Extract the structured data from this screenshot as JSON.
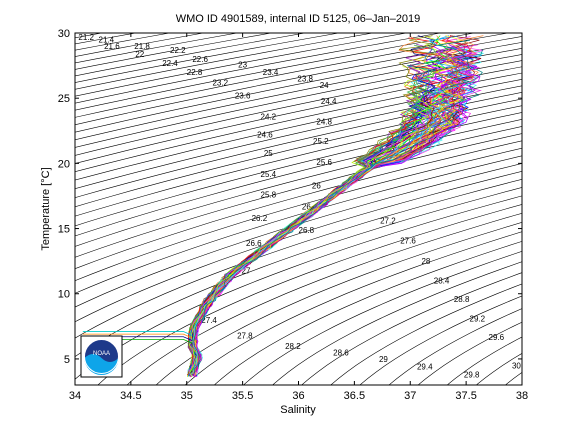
{
  "chart_data": {
    "type": "scatter",
    "title": "WMO ID 4901589, internal ID 5125, 06–Jan–2019",
    "xlabel": "Salinity",
    "ylabel": "Temperature [°C]",
    "xlim": [
      34,
      38
    ],
    "ylim": [
      3,
      30
    ],
    "xticks": [
      "34",
      "34.5",
      "35",
      "35.5",
      "36",
      "36.5",
      "37",
      "37.5",
      "38"
    ],
    "yticks": [
      "5",
      "10",
      "15",
      "20",
      "25",
      "30"
    ],
    "grid": false,
    "logo_text": "NOAA",
    "density_contours": {
      "labels": [
        "21.2",
        "21.4",
        "21.6",
        "21.8",
        "22",
        "22.2",
        "22.4",
        "22.6",
        "22.8",
        "23",
        "23.2",
        "23.4",
        "23.6",
        "23.8",
        "24",
        "24.2",
        "24.4",
        "24.6",
        "24.8",
        "25",
        "25.2",
        "25.4",
        "25.6",
        "25.8",
        "26",
        "26.2",
        "26.4",
        "26.6",
        "26.8",
        "27",
        "27.2",
        "27.4",
        "27.6",
        "27.8",
        "28",
        "28.2",
        "28.4",
        "28.6",
        "28.8",
        "29",
        "29.2",
        "29.4",
        "29.6",
        "29.8",
        "30"
      ],
      "label_positions": [
        {
          "t": "21.2",
          "s": 34.1,
          "T": 29.7
        },
        {
          "t": "21.4",
          "s": 34.28,
          "T": 29.5
        },
        {
          "t": "21.6",
          "s": 34.33,
          "T": 29.0
        },
        {
          "t": "21.8",
          "s": 34.6,
          "T": 29.0
        },
        {
          "t": "22",
          "s": 34.58,
          "T": 28.4
        },
        {
          "t": "22.2",
          "s": 34.92,
          "T": 28.7
        },
        {
          "t": "22.4",
          "s": 34.85,
          "T": 27.7
        },
        {
          "t": "22.6",
          "s": 35.12,
          "T": 28.0
        },
        {
          "t": "22.8",
          "s": 35.07,
          "T": 27.0
        },
        {
          "t": "23",
          "s": 35.5,
          "T": 27.6
        },
        {
          "t": "23.2",
          "s": 35.3,
          "T": 26.2
        },
        {
          "t": "23.4",
          "s": 35.75,
          "T": 27.0
        },
        {
          "t": "23.6",
          "s": 35.5,
          "T": 25.2
        },
        {
          "t": "23.8",
          "s": 36.06,
          "T": 26.5
        },
        {
          "t": "24",
          "s": 36.23,
          "T": 26.0
        },
        {
          "t": "24.2",
          "s": 35.73,
          "T": 23.6
        },
        {
          "t": "24.4",
          "s": 36.27,
          "T": 24.8
        },
        {
          "t": "24.6",
          "s": 35.7,
          "T": 22.2
        },
        {
          "t": "24.8",
          "s": 36.23,
          "T": 23.2
        },
        {
          "t": "25",
          "s": 35.73,
          "T": 20.8
        },
        {
          "t": "25.2",
          "s": 36.2,
          "T": 21.7
        },
        {
          "t": "25.4",
          "s": 35.73,
          "T": 19.2
        },
        {
          "t": "25.6",
          "s": 36.23,
          "T": 20.1
        },
        {
          "t": "25.8",
          "s": 35.73,
          "T": 17.6
        },
        {
          "t": "26",
          "s": 36.16,
          "T": 18.3
        },
        {
          "t": "26.2",
          "s": 35.65,
          "T": 15.8
        },
        {
          "t": "26.4",
          "s": 36.1,
          "T": 16.7
        },
        {
          "t": "26.6",
          "s": 35.6,
          "T": 13.9
        },
        {
          "t": "26.8",
          "s": 36.07,
          "T": 14.9
        },
        {
          "t": "27",
          "s": 35.53,
          "T": 11.8
        },
        {
          "t": "27.2",
          "s": 36.8,
          "T": 15.6
        },
        {
          "t": "27.4",
          "s": 35.2,
          "T": 8.0
        },
        {
          "t": "27.6",
          "s": 36.98,
          "T": 14.1
        },
        {
          "t": "27.8",
          "s": 35.52,
          "T": 6.8
        },
        {
          "t": "28",
          "s": 37.14,
          "T": 12.5
        },
        {
          "t": "28.2",
          "s": 35.95,
          "T": 6.0
        },
        {
          "t": "28.4",
          "s": 37.28,
          "T": 11.0
        },
        {
          "t": "28.6",
          "s": 36.38,
          "T": 5.5
        },
        {
          "t": "28.8",
          "s": 37.46,
          "T": 9.6
        },
        {
          "t": "29",
          "s": 36.76,
          "T": 5.0
        },
        {
          "t": "29.2",
          "s": 37.6,
          "T": 8.1
        },
        {
          "t": "29.4",
          "s": 37.13,
          "T": 4.4
        },
        {
          "t": "29.6",
          "s": 37.77,
          "T": 6.7
        },
        {
          "t": "29.8",
          "s": 37.55,
          "T": 3.8
        },
        {
          "t": "30",
          "s": 37.95,
          "T": 4.5
        }
      ]
    },
    "profile_shape": {
      "description_points": [
        {
          "s": 37.3,
          "T": 26.0
        },
        {
          "s": 37.2,
          "T": 23.0
        },
        {
          "s": 36.9,
          "T": 21.0
        },
        {
          "s": 36.6,
          "T": 19.5
        },
        {
          "s": 36.3,
          "T": 17.5
        },
        {
          "s": 36.0,
          "T": 15.5
        },
        {
          "s": 35.7,
          "T": 13.5
        },
        {
          "s": 35.4,
          "T": 11.5
        },
        {
          "s": 35.2,
          "T": 9.5
        },
        {
          "s": 35.07,
          "T": 7.5
        },
        {
          "s": 35.05,
          "T": 6.0
        },
        {
          "s": 35.1,
          "T": 5.2
        },
        {
          "s": 35.05,
          "T": 4.0
        }
      ],
      "upper_spread": {
        "s_min": 37.0,
        "s_max": 37.7,
        "T_min": 22.0,
        "T_max": 29.5
      },
      "surface_mixed_lines": {
        "s_start": 34.07,
        "s_end": 34.97,
        "T_values": [
          6.5,
          6.7,
          6.9,
          7.1
        ]
      }
    }
  }
}
